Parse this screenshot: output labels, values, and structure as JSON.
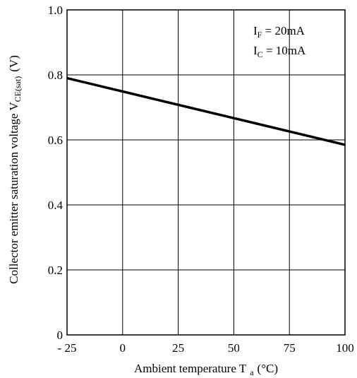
{
  "chart_data": {
    "type": "line",
    "title": "",
    "xlabel": "Ambient temperature T",
    "xlabel_sub": "a",
    "xlabel_unit": "(°C)",
    "ylabel": "Collector emitter saturation voltage V",
    "ylabel_sub": "CE(sat)",
    "ylabel_unit": "(V)",
    "xlim": [
      -25,
      100
    ],
    "ylim": [
      0,
      1.0
    ],
    "x_ticks": [
      -25,
      0,
      25,
      50,
      75,
      100
    ],
    "x_tick_labels": [
      "- 25",
      "0",
      "25",
      "50",
      "75",
      "100"
    ],
    "y_ticks": [
      0,
      0.2,
      0.4,
      0.6,
      0.8,
      1.0
    ],
    "y_tick_labels": [
      "0",
      "0.2",
      "0.4",
      "0.6",
      "0.8",
      "1.0"
    ],
    "grid": true,
    "series": [
      {
        "x": [
          -25,
          100
        ],
        "y": [
          0.79,
          0.585
        ]
      }
    ],
    "annotations": [
      {
        "var": "I",
        "sub": "F",
        "rest": " = 20mA"
      },
      {
        "var": "I",
        "sub": "C",
        "rest": " = 10mA"
      }
    ]
  }
}
